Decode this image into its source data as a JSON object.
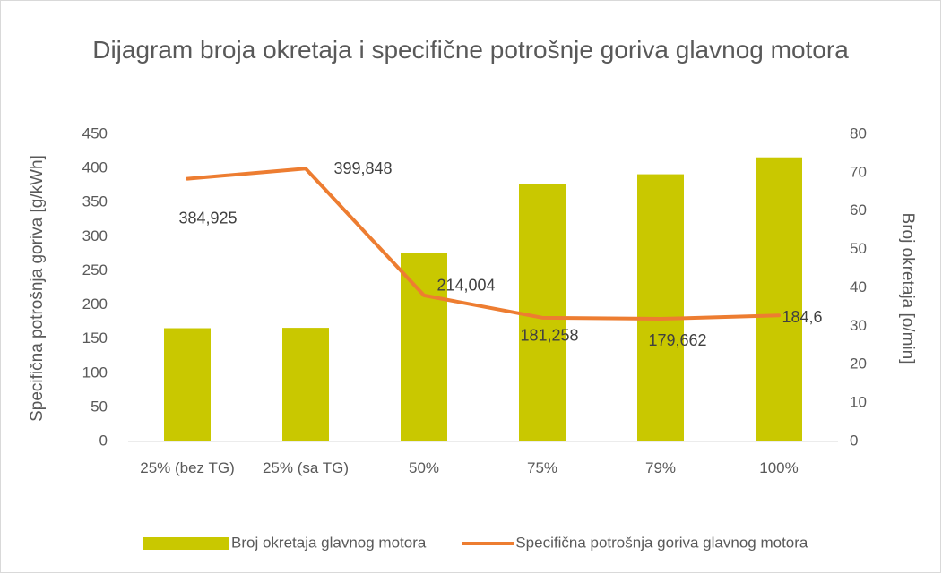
{
  "chart_data": {
    "type": "combo",
    "title": "Dijagram broja okretaja i specifične potrošnje goriva glavnog motora",
    "y_label": "Specifična potrošnja goriva [g/kWh]",
    "y2_label": "Broj okretaja [o/min]",
    "categories": [
      "25% (bez TG)",
      "25% (sa TG)",
      "50%",
      "75%",
      "79%",
      "100%"
    ],
    "series": [
      {
        "name": "Broj okretaja glavnog motora",
        "type": "bar",
        "axis": "y2",
        "color": "#c9c800",
        "values": [
          29.5,
          29.6,
          49,
          67,
          69.6,
          74
        ]
      },
      {
        "name": "Specifična potrošnja goriva glavnog motora",
        "type": "line",
        "color": "#ed7d31",
        "values": [
          384.925,
          399.848,
          214.004,
          181.258,
          179.662,
          184.6
        ],
        "value_labels": [
          "384,925",
          "399,848",
          "214,004",
          "181,258",
          "179,662",
          "184,6"
        ]
      }
    ],
    "ylim": [
      0,
      450
    ],
    "yticks": [
      0,
      50,
      100,
      150,
      200,
      250,
      300,
      350,
      400,
      450
    ],
    "y2lim": [
      0,
      80
    ],
    "y2ticks": [
      0,
      10,
      20,
      30,
      40,
      50,
      60,
      70,
      80
    ],
    "legend": "bottom",
    "grid": false
  }
}
